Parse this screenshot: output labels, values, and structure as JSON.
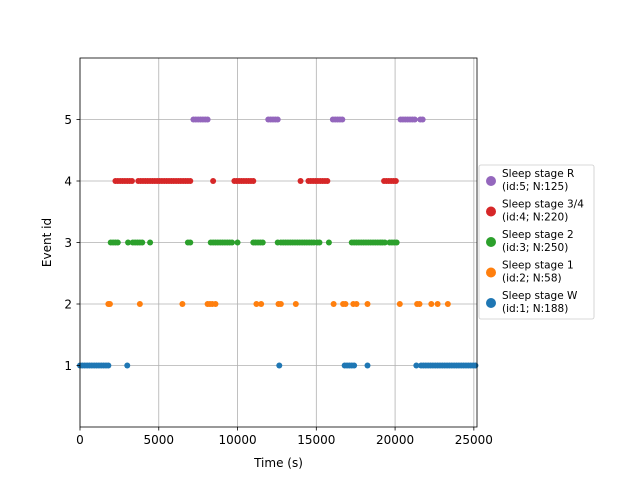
{
  "chart_data": {
    "type": "scatter",
    "title": "",
    "xlabel": "Time (s)",
    "ylabel": "Event id",
    "xlim": [
      0,
      25200
    ],
    "ylim": [
      0,
      6
    ],
    "xticks": [
      0,
      5000,
      10000,
      15000,
      20000,
      25000
    ],
    "xtick_labels": [
      "0",
      "5000",
      "10000",
      "15000",
      "20000",
      "25000"
    ],
    "yticks": [
      1,
      2,
      3,
      4,
      5
    ],
    "ytick_labels": [
      "1",
      "2",
      "3",
      "4",
      "5"
    ],
    "grid": true,
    "legend_placement": "right",
    "series": [
      {
        "name_line1": "Sleep stage W",
        "name_line2": "(id:1; N:188)",
        "event_id": 1,
        "color": "#1f77b4",
        "x": [
          0,
          150,
          300,
          450,
          600,
          750,
          900,
          1050,
          1200,
          1350,
          1500,
          1650,
          1800,
          3000,
          12650,
          16800,
          16950,
          17100,
          17250,
          17400,
          18250,
          21350,
          21650,
          21800,
          21950,
          22100,
          22250,
          22400,
          22550,
          22700,
          22850,
          23000,
          23150,
          23300,
          23450,
          23600,
          23750,
          23900,
          24050,
          24200,
          24350,
          24500,
          24650,
          24800,
          24950,
          25100
        ]
      },
      {
        "name_line1": "Sleep stage 1",
        "name_line2": "(id:2; N:58)",
        "event_id": 2,
        "color": "#ff7f0e",
        "x": [
          1800,
          1900,
          3800,
          6500,
          8100,
          8250,
          8400,
          8600,
          11200,
          11500,
          12600,
          12750,
          13700,
          16100,
          16700,
          16850,
          17350,
          17550,
          18250,
          20300,
          21400,
          21550,
          22300,
          22700,
          23350
        ]
      },
      {
        "name_line1": "Sleep stage 2",
        "name_line2": "(id:3; N:250)",
        "event_id": 3,
        "color": "#2ca02c",
        "x": [
          1950,
          2100,
          2250,
          2400,
          3050,
          3350,
          3500,
          3650,
          3800,
          3950,
          4450,
          6850,
          7000,
          8300,
          8450,
          8600,
          8750,
          8900,
          9050,
          9200,
          9350,
          9500,
          9650,
          10000,
          11000,
          11150,
          11300,
          11450,
          11600,
          12550,
          12750,
          12900,
          13050,
          13200,
          13350,
          13500,
          13650,
          13800,
          13950,
          14100,
          14250,
          14400,
          14550,
          14700,
          14850,
          15050,
          15200,
          15800,
          17250,
          17400,
          17550,
          17700,
          17850,
          18000,
          18150,
          18300,
          18450,
          18600,
          18750,
          18900,
          19050,
          19200,
          19350,
          19650,
          19800,
          19950,
          20100
        ]
      },
      {
        "name_line1": "Sleep stage 3/4",
        "name_line2": "(id:4; N:220)",
        "event_id": 4,
        "color": "#d62728",
        "x": [
          2250,
          2400,
          2550,
          2700,
          2850,
          3000,
          3150,
          3300,
          3700,
          3850,
          4000,
          4150,
          4300,
          4450,
          4600,
          4750,
          4900,
          5050,
          5200,
          5350,
          5500,
          5650,
          5800,
          5950,
          6100,
          6250,
          6400,
          6550,
          6700,
          6850,
          7000,
          8450,
          9800,
          9950,
          10100,
          10250,
          10400,
          10550,
          10700,
          10850,
          11000,
          14000,
          14500,
          14650,
          14800,
          14950,
          15100,
          15250,
          15400,
          15550,
          15700,
          19300,
          19450,
          19600,
          19750,
          19900,
          20050
        ]
      },
      {
        "name_line1": "Sleep stage R",
        "name_line2": "(id:5; N:125)",
        "event_id": 5,
        "color": "#9467bd",
        "x": [
          7200,
          7350,
          7500,
          7650,
          7800,
          7950,
          8100,
          11950,
          12100,
          12250,
          12400,
          12550,
          16050,
          16200,
          16350,
          16500,
          16650,
          20350,
          20500,
          20650,
          20800,
          20950,
          21100,
          21250,
          21600,
          21750
        ]
      }
    ]
  }
}
